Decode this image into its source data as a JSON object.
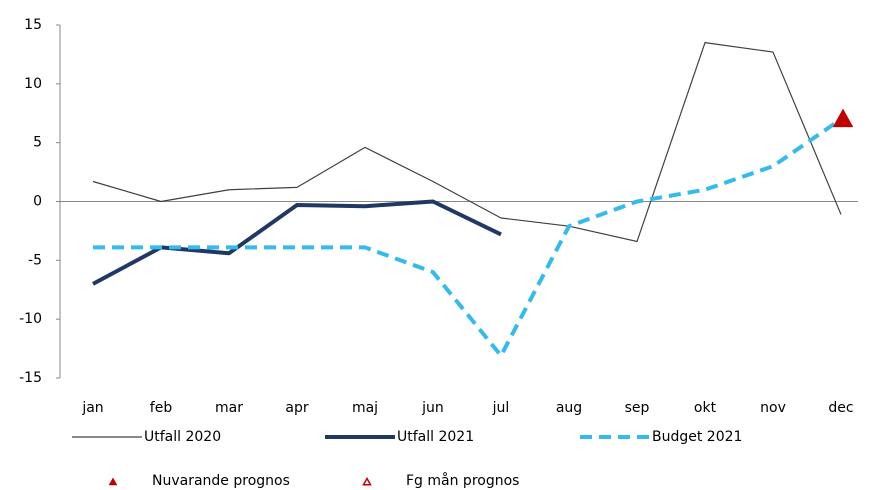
{
  "chart_data": {
    "type": "line",
    "categories": [
      "jan",
      "feb",
      "mar",
      "apr",
      "maj",
      "jun",
      "jul",
      "aug",
      "sep",
      "okt",
      "nov",
      "dec"
    ],
    "series": [
      {
        "name": "Utfall 2020",
        "color": "#404040",
        "line_style": "thin",
        "values": [
          1.7,
          0,
          1,
          1.2,
          4.6,
          1.7,
          -1.4,
          -2.1,
          -3.4,
          13.5,
          12.7,
          -1.1
        ]
      },
      {
        "name": "Utfall 2021",
        "color": "#1f3864",
        "line_style": "thick",
        "values": [
          -7,
          -3.9,
          -4.4,
          -0.3,
          -0.4,
          0,
          -2.8,
          null,
          null,
          null,
          null,
          null
        ]
      },
      {
        "name": "Budget 2021",
        "color": "#33bbee",
        "line_style": "dashed",
        "values": [
          -3.9,
          -3.9,
          -3.9,
          -3.9,
          -3.9,
          -6,
          -13.1,
          -2.1,
          0,
          1,
          3,
          7
        ]
      },
      {
        "name": "Nuvarande prognos",
        "color": "#c00000",
        "line_style": "none",
        "marker": "triangle-filled",
        "values": [
          null,
          null,
          null,
          null,
          null,
          null,
          null,
          null,
          null,
          null,
          null,
          7
        ]
      },
      {
        "name": "Fg mån prognos",
        "color": "#c00000",
        "line_style": "none",
        "marker": "triangle-open",
        "values": [
          null,
          null,
          null,
          null,
          null,
          null,
          null,
          null,
          null,
          null,
          null,
          7
        ]
      }
    ],
    "ylim": [
      -15,
      15
    ],
    "yticks": [
      -15,
      -10,
      -5,
      0,
      5,
      10,
      15
    ],
    "grid": false
  }
}
